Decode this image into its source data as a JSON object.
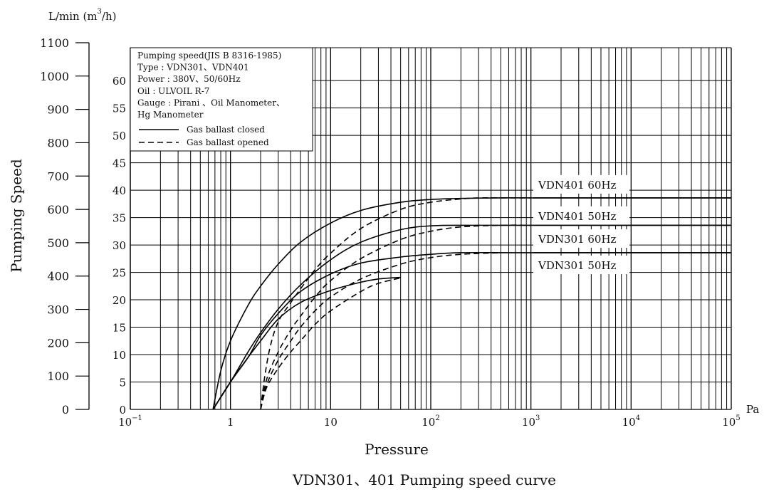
{
  "chart_data": {
    "type": "line",
    "title": "VDN301、401 Pumping speed curve",
    "xlabel": "Pressure",
    "x_unit": "Pa",
    "x_scale": "log",
    "xlim": [
      0.1,
      100000
    ],
    "x_ticks": [
      {
        "value": 0.1,
        "base": "10",
        "exp": "−1"
      },
      {
        "value": 1,
        "base": "1",
        "exp": ""
      },
      {
        "value": 10,
        "base": "10",
        "exp": ""
      },
      {
        "value": 100,
        "base": "10",
        "exp": "2"
      },
      {
        "value": 1000,
        "base": "10",
        "exp": "3"
      },
      {
        "value": 10000,
        "base": "10",
        "exp": "4"
      },
      {
        "value": 100000,
        "base": "10",
        "exp": "5"
      }
    ],
    "ylabel": "Pumping Speed",
    "y_left": {
      "unit_main": "L/min (m",
      "unit_sup": "3",
      "unit_end": "/h)",
      "lim": [
        0,
        1100
      ],
      "ticks": [
        0,
        100,
        200,
        300,
        400,
        500,
        600,
        700,
        800,
        900,
        1000,
        1100
      ]
    },
    "y_right": {
      "lim": [
        0,
        66
      ],
      "ticks": [
        0,
        5,
        10,
        15,
        20,
        25,
        30,
        35,
        40,
        45,
        50,
        55,
        60
      ]
    },
    "grid": true,
    "legend": {
      "position": "top-left",
      "lines": [
        "Pumping speed(JIS B 8316-1985)",
        "Type  : VDN301、VDN401",
        "Power : 380V、50/60Hz",
        "Oil   : ULVOIL R-7",
        "Gauge : Pirani 、Oil Manometer、",
        "        Hg Manometer"
      ],
      "styles": [
        {
          "label": "Gas ballast closed",
          "dash": "solid"
        },
        {
          "label": "Gas ballast opened",
          "dash": "dashed"
        }
      ]
    },
    "series": [
      {
        "name": "VDN401  60Hz",
        "ballast": "closed",
        "x": [
          0.67,
          0.8,
          1,
          1.5,
          2,
          3,
          5,
          10,
          20,
          50,
          100,
          200,
          500,
          1000,
          10000,
          100000
        ],
        "y": [
          0,
          7,
          12.5,
          19,
          22.5,
          26.5,
          30.5,
          34,
          36.3,
          37.8,
          38.3,
          38.5,
          38.6,
          38.6,
          38.6,
          38.6
        ]
      },
      {
        "name": "VDN401  60Hz",
        "ballast": "opened",
        "x": [
          2,
          2.2,
          2.5,
          3,
          4,
          5,
          7,
          10,
          20,
          50,
          100,
          200,
          300,
          500,
          1000
        ],
        "y": [
          0,
          6,
          11.5,
          16,
          19.5,
          22,
          25.5,
          28.5,
          33,
          36.5,
          37.8,
          38.4,
          38.6,
          38.6,
          38.6
        ]
      },
      {
        "name": "VDN401  50Hz",
        "ballast": "closed",
        "x": [
          0.67,
          1,
          1.5,
          2,
          3,
          5,
          10,
          20,
          50,
          100,
          200,
          500,
          1000,
          100000
        ],
        "y": [
          0,
          5,
          10.5,
          14,
          18.3,
          22.7,
          27.3,
          30.5,
          32.8,
          33.5,
          33.6,
          33.6,
          33.6,
          33.6
        ]
      },
      {
        "name": "VDN401  50Hz",
        "ballast": "opened",
        "x": [
          2,
          2.3,
          3,
          4,
          5,
          7,
          10,
          20,
          50,
          100,
          200,
          500,
          1000
        ],
        "y": [
          0,
          5.5,
          10.5,
          14.5,
          17,
          20.5,
          23.5,
          27.5,
          31,
          32.5,
          33.3,
          33.6,
          33.6
        ]
      },
      {
        "name": "VDN301  60Hz",
        "ballast": "closed",
        "x": [
          0.67,
          1,
          1.5,
          2,
          3,
          5,
          10,
          20,
          50,
          100,
          200,
          1000,
          100000
        ],
        "y": [
          0,
          5,
          9.5,
          13.5,
          17.5,
          21.5,
          24.7,
          26.7,
          27.8,
          28.3,
          28.6,
          28.6,
          28.6
        ]
      },
      {
        "name": "VDN301  60Hz",
        "ballast": "opened",
        "x": [
          2,
          2.3,
          3,
          4,
          5,
          7,
          10,
          20,
          50,
          100,
          200,
          500
        ],
        "y": [
          0,
          4.5,
          9,
          12.5,
          15,
          18,
          20.5,
          23.8,
          26.5,
          27.7,
          28.3,
          28.6
        ]
      },
      {
        "name": "VDN301  50Hz",
        "ballast": "closed",
        "x": [
          0.67,
          1,
          1.5,
          2,
          3,
          5,
          10,
          20,
          30,
          50
        ],
        "y": [
          0,
          5,
          9.5,
          12.5,
          16.5,
          19.5,
          21.7,
          23.2,
          23.8,
          24.1
        ]
      },
      {
        "name": "VDN301  50Hz",
        "ballast": "opened",
        "x": [
          2,
          2.3,
          3,
          4,
          5,
          7,
          10,
          20,
          30,
          50
        ],
        "y": [
          0,
          4,
          7.5,
          10.5,
          12.5,
          15.5,
          18,
          21.5,
          23,
          24
        ]
      }
    ],
    "series_labels": [
      "VDN401  60Hz",
      "VDN401  50Hz",
      "VDN301  60Hz",
      "VDN301  50Hz"
    ]
  }
}
